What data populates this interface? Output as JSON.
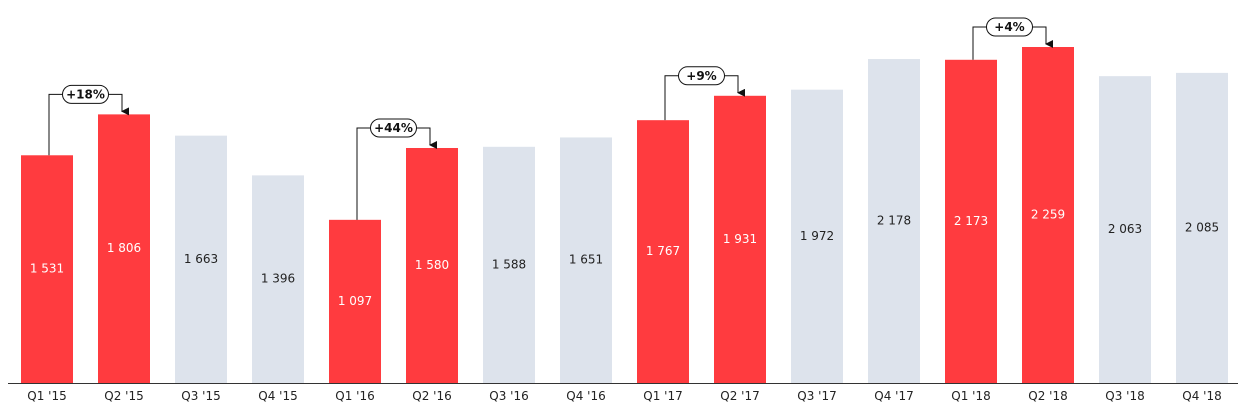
{
  "chart_data": {
    "type": "bar",
    "title": "",
    "xlabel": "",
    "ylabel": "",
    "ylim": [
      0,
      2350
    ],
    "grid": false,
    "legend": false,
    "categories": [
      "Q1 '15",
      "Q2 '15",
      "Q3 '15",
      "Q4 '15",
      "Q1 '16",
      "Q2 '16",
      "Q3 '16",
      "Q4 '16",
      "Q1 '17",
      "Q2 '17",
      "Q3 '17",
      "Q4 '17",
      "Q1 '18",
      "Q2 '18",
      "Q3 '18",
      "Q4 '18"
    ],
    "values": [
      1531,
      1806,
      1663,
      1396,
      1097,
      1580,
      1588,
      1651,
      1767,
      1931,
      1972,
      2178,
      2173,
      2259,
      2063,
      2085
    ],
    "value_labels": [
      "1 531",
      "1 806",
      "1 663",
      "1 396",
      "1 097",
      "1 580",
      "1 588",
      "1 651",
      "1 767",
      "1 931",
      "1 972",
      "2 178",
      "2 173",
      "2 259",
      "2 063",
      "2 085"
    ],
    "highlighted": [
      true,
      true,
      false,
      false,
      true,
      true,
      false,
      false,
      true,
      true,
      false,
      false,
      true,
      true,
      false,
      false
    ],
    "colors": {
      "highlight": "#ff3b3f",
      "base": "#dde3ec",
      "highlight_text": "#ffffff",
      "base_text": "#222222",
      "axis": "#333333"
    },
    "annotations": [
      {
        "from": 0,
        "to": 1,
        "label": "+18%"
      },
      {
        "from": 4,
        "to": 5,
        "label": "+44%"
      },
      {
        "from": 8,
        "to": 9,
        "label": "+9%"
      },
      {
        "from": 12,
        "to": 13,
        "label": "+4%"
      }
    ]
  }
}
